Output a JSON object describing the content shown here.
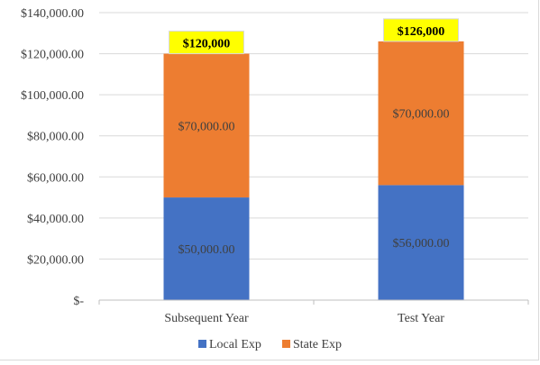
{
  "chart_data": {
    "type": "bar",
    "stacked": true,
    "categories": [
      "Subsequent Year",
      "Test Year"
    ],
    "series": [
      {
        "name": "Local Exp",
        "color": "#4472c4",
        "values": [
          50000,
          56000
        ],
        "labels": [
          "$50,000.00",
          "$56,000.00"
        ]
      },
      {
        "name": "State Exp",
        "color": "#ed7d31",
        "values": [
          70000,
          70000
        ],
        "labels": [
          "$70,000.00",
          "$70,000.00"
        ]
      }
    ],
    "totals": {
      "values": [
        120000,
        126000
      ],
      "labels": [
        "$120,000",
        "$126,000"
      ],
      "highlight_color": "#ffff00"
    },
    "y_ticks": [
      {
        "value": 0,
        "label": "$-"
      },
      {
        "value": 20000,
        "label": "$20,000.00"
      },
      {
        "value": 40000,
        "label": "$40,000.00"
      },
      {
        "value": 60000,
        "label": "$60,000.00"
      },
      {
        "value": 80000,
        "label": "$80,000.00"
      },
      {
        "value": 100000,
        "label": "$100,000.00"
      },
      {
        "value": 120000,
        "label": "$120,000.00"
      },
      {
        "value": 140000,
        "label": "$140,000.00"
      }
    ],
    "ylim": [
      0,
      140000
    ],
    "grid": true,
    "legend_position": "bottom",
    "title": "",
    "xlabel": "",
    "ylabel": ""
  }
}
